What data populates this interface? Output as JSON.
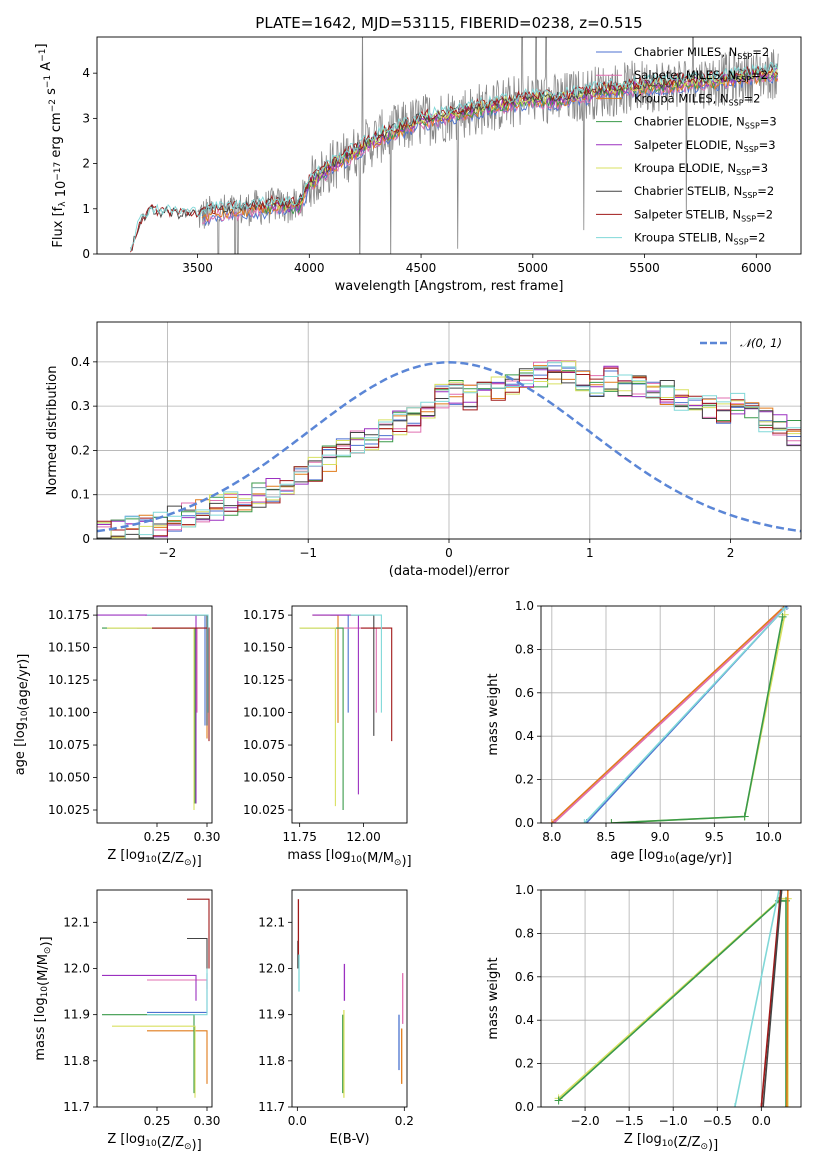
{
  "figure": {
    "title": "PLATE=1642, MJD=53115, FIBERID=0238, z=0.515"
  },
  "colors": {
    "chabrier_miles": "#4c72d0",
    "salpeter_miles": "#e06fb0",
    "kroupa_miles": "#e07b1a",
    "chabrier_elodie": "#3a9a4a",
    "salpeter_elodie": "#9b30c0",
    "kroupa_elodie": "#d8e060",
    "chabrier_stelib": "#444444",
    "salpeter_stelib": "#a01818",
    "kroupa_stelib": "#80d8d8",
    "data_spectrum": "#888888",
    "normal_curve": "#5b86d6",
    "grid": "#b0b0b0"
  },
  "chart_data": [
    {
      "id": "spectrum",
      "type": "line",
      "xlabel": "wavelength [Angstrom, rest frame]",
      "ylabel": "Flux [f_λ 10^-17 erg cm^-2 s^-1 A^-1]",
      "xlim": [
        3050,
        6200
      ],
      "ylim": [
        0,
        4.8
      ],
      "xticks": [
        3500,
        4000,
        4500,
        5000,
        5500,
        6000
      ],
      "yticks": [
        0,
        1,
        2,
        3,
        4
      ],
      "grid": false,
      "legend_position": "right",
      "legend": [
        {
          "base": "Chabrier MILES, N",
          "sub": "SSP",
          "tail": "=2",
          "color_key": "chabrier_miles"
        },
        {
          "base": "Salpeter MILES, N",
          "sub": "SSP",
          "tail": "=2",
          "color_key": "salpeter_miles"
        },
        {
          "base": "Kroupa MILES, N",
          "sub": "SSP",
          "tail": "=2",
          "color_key": "kroupa_miles"
        },
        {
          "base": "Chabrier ELODIE, N",
          "sub": "SSP",
          "tail": "=3",
          "color_key": "chabrier_elodie"
        },
        {
          "base": "Salpeter ELODIE, N",
          "sub": "SSP",
          "tail": "=3",
          "color_key": "salpeter_elodie"
        },
        {
          "base": "Kroupa ELODIE, N",
          "sub": "SSP",
          "tail": "=3",
          "color_key": "kroupa_elodie"
        },
        {
          "base": "Chabrier STELIB, N",
          "sub": "SSP",
          "tail": "=2",
          "color_key": "chabrier_stelib"
        },
        {
          "base": "Salpeter STELIB, N",
          "sub": "SSP",
          "tail": "=2",
          "color_key": "salpeter_stelib"
        },
        {
          "base": "Kroupa STELIB, N",
          "sub": "SSP",
          "tail": "=2",
          "color_key": "kroupa_stelib"
        }
      ],
      "continuum_model": {
        "x": [
          3200,
          3230,
          3260,
          3300,
          3350,
          3400,
          3450,
          3500,
          3550,
          3600,
          3650,
          3700,
          3750,
          3800,
          3850,
          3900,
          3950,
          4000,
          4100,
          4200,
          4300,
          4400,
          4500,
          4600,
          4700,
          4800,
          4900,
          5000,
          5100,
          5200,
          5300,
          5400,
          5500,
          5600,
          5700,
          5800,
          5900,
          6000,
          6050
        ],
        "y": [
          0.0,
          0.5,
          0.78,
          0.9,
          0.86,
          0.85,
          0.82,
          0.83,
          0.9,
          0.95,
          0.95,
          0.98,
          1.03,
          1.02,
          1.1,
          1.05,
          1.05,
          1.55,
          1.95,
          2.25,
          2.55,
          2.75,
          2.95,
          3.05,
          3.15,
          3.25,
          3.35,
          3.45,
          3.4,
          3.5,
          3.6,
          3.65,
          3.72,
          3.75,
          3.8,
          3.82,
          3.9,
          3.95,
          4.0
        ]
      }
    },
    {
      "id": "residuals",
      "type": "line",
      "xlabel": "(data-model)/error",
      "ylabel": "Normed distribution",
      "xlim": [
        -2.5,
        2.5
      ],
      "ylim": [
        0,
        0.49
      ],
      "xticks": [
        -2,
        -1,
        0,
        1,
        2
      ],
      "yticks": [
        0.0,
        0.1,
        0.2,
        0.3,
        0.4
      ],
      "grid": true,
      "legend_position": "top-right",
      "legend_label": "𝒩(0, 1)",
      "histogram": {
        "bin_edges_start": -2.5,
        "bin_width": 0.1,
        "base_values": [
          0.02,
          0.02,
          0.025,
          0.03,
          0.035,
          0.045,
          0.055,
          0.06,
          0.07,
          0.08,
          0.09,
          0.1,
          0.11,
          0.13,
          0.14,
          0.16,
          0.18,
          0.2,
          0.22,
          0.23,
          0.24,
          0.26,
          0.27,
          0.3,
          0.32,
          0.33,
          0.32,
          0.33,
          0.34,
          0.35,
          0.36,
          0.37,
          0.38,
          0.38,
          0.36,
          0.35,
          0.36,
          0.35,
          0.34,
          0.33,
          0.33,
          0.32,
          0.31,
          0.3,
          0.29,
          0.3,
          0.28,
          0.27,
          0.26,
          0.24,
          0.22,
          0.21,
          0.19,
          0.17,
          0.16,
          0.14,
          0.12,
          0.11,
          0.1,
          0.08,
          0.07,
          0.06,
          0.05,
          0.045,
          0.04,
          0.035,
          0.03,
          0.025,
          0.02,
          0.02
        ]
      }
    },
    {
      "id": "age_vs_Z",
      "type": "line",
      "xlabel": "Z [log10(Z/Z⊙)]",
      "ylabel": "age  [log10(age/yr)]",
      "xlim": [
        0.19,
        0.305
      ],
      "ylim": [
        10.015,
        10.182
      ],
      "xticks": [
        0.25,
        0.3
      ],
      "yticks": [
        10.025,
        10.05,
        10.075,
        10.1,
        10.125,
        10.15,
        10.175
      ],
      "tick_labels_x": [
        "0.25",
        "0.30"
      ],
      "tick_labels_y": [
        "10.025",
        "10.050",
        "10.075",
        "10.100",
        "10.125",
        "10.150",
        "10.175"
      ],
      "grid": false
    },
    {
      "id": "age_vs_mass",
      "type": "line",
      "xlabel": "mass [log10(M/M⊙)]",
      "ylabel": "",
      "xlim": [
        11.72,
        12.17
      ],
      "ylim": [
        10.015,
        10.182
      ],
      "xticks": [
        11.75,
        12.0
      ],
      "yticks": [
        10.025,
        10.05,
        10.075,
        10.1,
        10.125,
        10.15,
        10.175
      ],
      "tick_labels_x": [
        "11.75",
        "12.00"
      ],
      "tick_labels_y": [
        "10.025",
        "10.050",
        "10.075",
        "10.100",
        "10.125",
        "10.150",
        "10.175"
      ],
      "grid": false
    },
    {
      "id": "mass_weight_vs_age",
      "type": "line",
      "xlabel": "age  [log10(age/yr)]",
      "ylabel": "mass weight",
      "xlim": [
        7.9,
        10.3
      ],
      "ylim": [
        0,
        1.0
      ],
      "xticks": [
        8.0,
        8.5,
        9.0,
        9.5,
        10.0
      ],
      "yticks": [
        0.0,
        0.2,
        0.4,
        0.6,
        0.8,
        1.0
      ],
      "tick_labels_x": [
        "8.0",
        "8.5",
        "9.0",
        "9.5",
        "10.0"
      ],
      "tick_labels_y": [
        "0.0",
        "0.2",
        "0.4",
        "0.6",
        "0.8",
        "1.0"
      ],
      "grid": true,
      "series": [
        {
          "color_key": "kroupa_miles",
          "x": [
            8.0,
            10.15
          ],
          "y": [
            0.0,
            1.0
          ]
        },
        {
          "color_key": "salpeter_miles",
          "x": [
            8.02,
            10.15
          ],
          "y": [
            0.0,
            0.99
          ]
        },
        {
          "color_key": "chabrier_miles",
          "x": [
            8.32,
            10.17
          ],
          "y": [
            0.0,
            1.0
          ]
        },
        {
          "color_key": "kroupa_stelib",
          "x": [
            8.3,
            10.15
          ],
          "y": [
            0.0,
            0.99
          ]
        },
        {
          "color_key": "kroupa_elodie",
          "x": [
            8.55,
            9.78,
            10.15
          ],
          "y": [
            0.0,
            0.03,
            0.96
          ]
        },
        {
          "color_key": "chabrier_elodie",
          "x": [
            8.55,
            9.78,
            10.13
          ],
          "y": [
            0.0,
            0.03,
            0.95
          ]
        }
      ]
    },
    {
      "id": "mass_vs_Z",
      "type": "line",
      "xlabel": "Z [log10(Z/Z⊙)]",
      "ylabel": "mass [log10(M/M⊙)]",
      "xlim": [
        0.19,
        0.305
      ],
      "ylim": [
        11.7,
        12.17
      ],
      "xticks": [
        0.25,
        0.3
      ],
      "yticks": [
        11.7,
        11.8,
        11.9,
        12.0,
        12.1
      ],
      "tick_labels_x": [
        "0.25",
        "0.30"
      ],
      "tick_labels_y": [
        "11.7",
        "11.8",
        "11.9",
        "12.0",
        "12.1"
      ],
      "grid": false
    },
    {
      "id": "mass_vs_ebv",
      "type": "line",
      "xlabel": "E(B-V)",
      "ylabel": "",
      "xlim": [
        -0.01,
        0.205
      ],
      "ylim": [
        11.7,
        12.17
      ],
      "xticks": [
        0.0,
        0.2
      ],
      "yticks": [
        11.7,
        11.8,
        11.9,
        12.0,
        12.1
      ],
      "tick_labels_x": [
        "0.0",
        "0.2"
      ],
      "tick_labels_y": [
        "11.7",
        "11.8",
        "11.9",
        "12.0",
        "12.1"
      ],
      "grid": false
    },
    {
      "id": "mass_weight_vs_Z",
      "type": "line",
      "xlabel": "Z [log10(Z/Z⊙)]",
      "ylabel": "mass weight",
      "xlim": [
        -2.5,
        0.45
      ],
      "ylim": [
        0,
        1.0
      ],
      "xticks": [
        -2.0,
        -1.5,
        -1.0,
        -0.5,
        0.0
      ],
      "yticks": [
        0.0,
        0.2,
        0.4,
        0.6,
        0.8,
        1.0
      ],
      "tick_labels_x": [
        "−2.0",
        "−1.5",
        "−1.0",
        "−0.5",
        "0.0"
      ],
      "tick_labels_y": [
        "0.0",
        "0.2",
        "0.4",
        "0.6",
        "0.8",
        "1.0"
      ],
      "grid": true,
      "series": [
        {
          "color_key": "kroupa_elodie",
          "x": [
            -2.3,
            0.22,
            0.3,
            0.3
          ],
          "y": [
            0.04,
            0.96,
            0.96,
            0.0
          ]
        },
        {
          "color_key": "chabrier_elodie",
          "x": [
            -2.3,
            0.2,
            0.28,
            0.28
          ],
          "y": [
            0.03,
            0.95,
            0.95,
            0.0
          ]
        },
        {
          "color_key": "kroupa_stelib",
          "x": [
            -0.3,
            0.2
          ],
          "y": [
            0.0,
            1.0
          ]
        },
        {
          "color_key": "salpeter_stelib",
          "x": [
            0.0,
            0.22
          ],
          "y": [
            0.0,
            1.0
          ]
        },
        {
          "color_key": "chabrier_stelib",
          "x": [
            0.02,
            0.23
          ],
          "y": [
            0.0,
            1.0
          ]
        },
        {
          "color_key": "kroupa_miles",
          "x": [
            0.29,
            0.3
          ],
          "y": [
            0.0,
            1.0
          ]
        }
      ]
    }
  ]
}
